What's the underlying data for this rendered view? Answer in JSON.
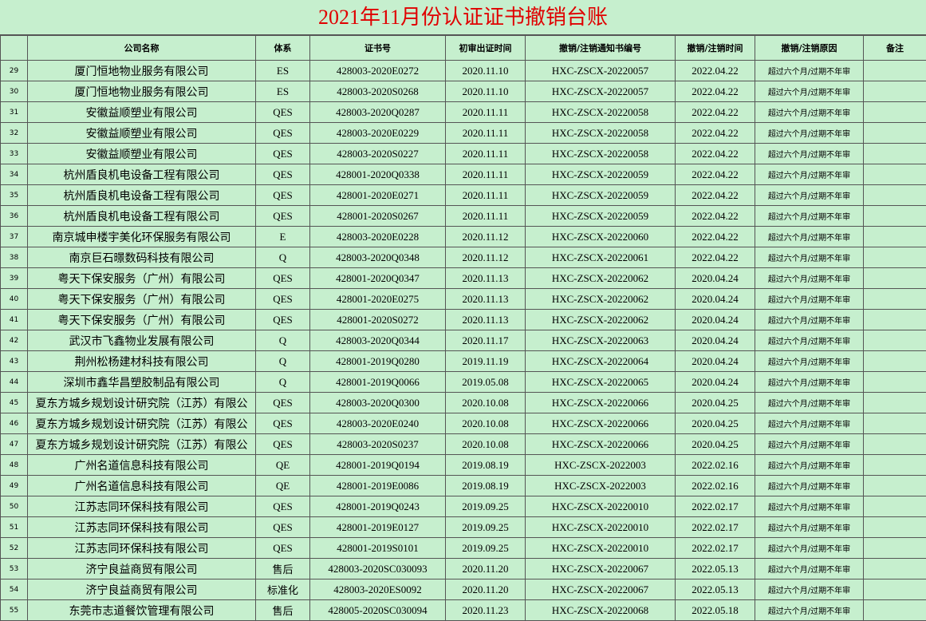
{
  "header": {
    "title": "2021年11月份认证证书撤销台账"
  },
  "table": {
    "columns": [
      "公司名称",
      "体系",
      "证书号",
      "初审出证时间",
      "撤销/注销通知书编号",
      "撤销/注销时间",
      "撤销/注销原因",
      "备注"
    ],
    "rows": [
      [
        29,
        "厦门恒地物业服务有限公司",
        "ES",
        "428003-2020E0272",
        "2020.11.10",
        "HXC-ZSCX-20220057",
        "2022.04.22",
        "超过六个月/过期不年审"
      ],
      [
        30,
        "厦门恒地物业服务有限公司",
        "ES",
        "428003-2020S0268",
        "2020.11.10",
        "HXC-ZSCX-20220057",
        "2022.04.22",
        "超过六个月/过期不年审"
      ],
      [
        31,
        "安徽益顺塑业有限公司",
        "QES",
        "428003-2020Q0287",
        "2020.11.11",
        "HXC-ZSCX-20220058",
        "2022.04.22",
        "超过六个月/过期不年审"
      ],
      [
        32,
        "安徽益顺塑业有限公司",
        "QES",
        "428003-2020E0229",
        "2020.11.11",
        "HXC-ZSCX-20220058",
        "2022.04.22",
        "超过六个月/过期不年审"
      ],
      [
        33,
        "安徽益顺塑业有限公司",
        "QES",
        "428003-2020S0227",
        "2020.11.11",
        "HXC-ZSCX-20220058",
        "2022.04.22",
        "超过六个月/过期不年审"
      ],
      [
        34,
        "杭州盾良机电设备工程有限公司",
        "QES",
        "428001-2020Q0338",
        "2020.11.11",
        "HXC-ZSCX-20220059",
        "2022.04.22",
        "超过六个月/过期不年审"
      ],
      [
        35,
        "杭州盾良机电设备工程有限公司",
        "QES",
        "428001-2020E0271",
        "2020.11.11",
        "HXC-ZSCX-20220059",
        "2022.04.22",
        "超过六个月/过期不年审"
      ],
      [
        36,
        "杭州盾良机电设备工程有限公司",
        "QES",
        "428001-2020S0267",
        "2020.11.11",
        "HXC-ZSCX-20220059",
        "2022.04.22",
        "超过六个月/过期不年审"
      ],
      [
        37,
        "南京城申楼宇美化环保服务有限公司",
        "E",
        "428003-2020E0228",
        "2020.11.12",
        "HXC-ZSCX-20220060",
        "2022.04.22",
        "超过六个月/过期不年审"
      ],
      [
        38,
        "南京巨石暻数码科技有限公司",
        "Q",
        "428003-2020Q0348",
        "2020.11.12",
        "HXC-ZSCX-20220061",
        "2022.04.22",
        "超过六个月/过期不年审"
      ],
      [
        39,
        "粤天下保安服务（广州）有限公司",
        "QES",
        "428001-2020Q0347",
        "2020.11.13",
        "HXC-ZSCX-20220062",
        "2020.04.24",
        "超过六个月/过期不年审"
      ],
      [
        40,
        "粤天下保安服务（广州）有限公司",
        "QES",
        "428001-2020E0275",
        "2020.11.13",
        "HXC-ZSCX-20220062",
        "2020.04.24",
        "超过六个月/过期不年审"
      ],
      [
        41,
        "粤天下保安服务（广州）有限公司",
        "QES",
        "428001-2020S0272",
        "2020.11.13",
        "HXC-ZSCX-20220062",
        "2020.04.24",
        "超过六个月/过期不年审"
      ],
      [
        42,
        "武汉市飞鑫物业发展有限公司",
        "Q",
        "428003-2020Q0344",
        "2020.11.17",
        "HXC-ZSCX-20220063",
        "2020.04.24",
        "超过六个月/过期不年审"
      ],
      [
        43,
        "荆州松杨建材科技有限公司",
        "Q",
        "428001-2019Q0280",
        "2019.11.19",
        "HXC-ZSCX-20220064",
        "2020.04.24",
        "超过六个月/过期不年审"
      ],
      [
        44,
        "深圳市鑫华昌塑胶制品有限公司",
        "Q",
        "428001-2019Q0066",
        "2019.05.08",
        "HXC-ZSCX-20220065",
        "2020.04.24",
        "超过六个月/过期不年审"
      ],
      [
        45,
        "夏东方城乡规划设计研究院（江苏）有限公",
        "QES",
        "428003-2020Q0300",
        "2020.10.08",
        "HXC-ZSCX-20220066",
        "2020.04.25",
        "超过六个月/过期不年审"
      ],
      [
        46,
        "夏东方城乡规划设计研究院（江苏）有限公",
        "QES",
        "428003-2020E0240",
        "2020.10.08",
        "HXC-ZSCX-20220066",
        "2020.04.25",
        "超过六个月/过期不年审"
      ],
      [
        47,
        "夏东方城乡规划设计研究院（江苏）有限公",
        "QES",
        "428003-2020S0237",
        "2020.10.08",
        "HXC-ZSCX-20220066",
        "2020.04.25",
        "超过六个月/过期不年审"
      ],
      [
        48,
        "广州名道信息科技有限公司",
        "QE",
        "428001-2019Q0194",
        "2019.08.19",
        "HXC-ZSCX-2022003",
        "2022.02.16",
        "超过六个月/过期不年审"
      ],
      [
        49,
        "广州名道信息科技有限公司",
        "QE",
        "428001-2019E0086",
        "2019.08.19",
        "HXC-ZSCX-2022003",
        "2022.02.16",
        "超过六个月/过期不年审"
      ],
      [
        50,
        "江苏志同环保科技有限公司",
        "QES",
        "428001-2019Q0243",
        "2019.09.25",
        "HXC-ZSCX-20220010",
        "2022.02.17",
        "超过六个月/过期不年审"
      ],
      [
        51,
        "江苏志同环保科技有限公司",
        "QES",
        "428001-2019E0127",
        "2019.09.25",
        "HXC-ZSCX-20220010",
        "2022.02.17",
        "超过六个月/过期不年审"
      ],
      [
        52,
        "江苏志同环保科技有限公司",
        "QES",
        "428001-2019S0101",
        "2019.09.25",
        "HXC-ZSCX-20220010",
        "2022.02.17",
        "超过六个月/过期不年审"
      ],
      [
        53,
        "济宁良益商贸有限公司",
        "售后",
        "428003-2020SC030093",
        "2020.11.20",
        "HXC-ZSCX-20220067",
        "2022.05.13",
        "超过六个月/过期不年审"
      ],
      [
        54,
        "济宁良益商贸有限公司",
        "标准化",
        "428003-2020ES0092",
        "2020.11.20",
        "HXC-ZSCX-20220067",
        "2022.05.13",
        "超过六个月/过期不年审"
      ],
      [
        55,
        "东莞市志道餐饮管理有限公司",
        "售后",
        "428005-2020SC030094",
        "2020.11.23",
        "HXC-ZSCX-20220068",
        "2022.05.18",
        "超过六个月/过期不年审"
      ]
    ]
  }
}
